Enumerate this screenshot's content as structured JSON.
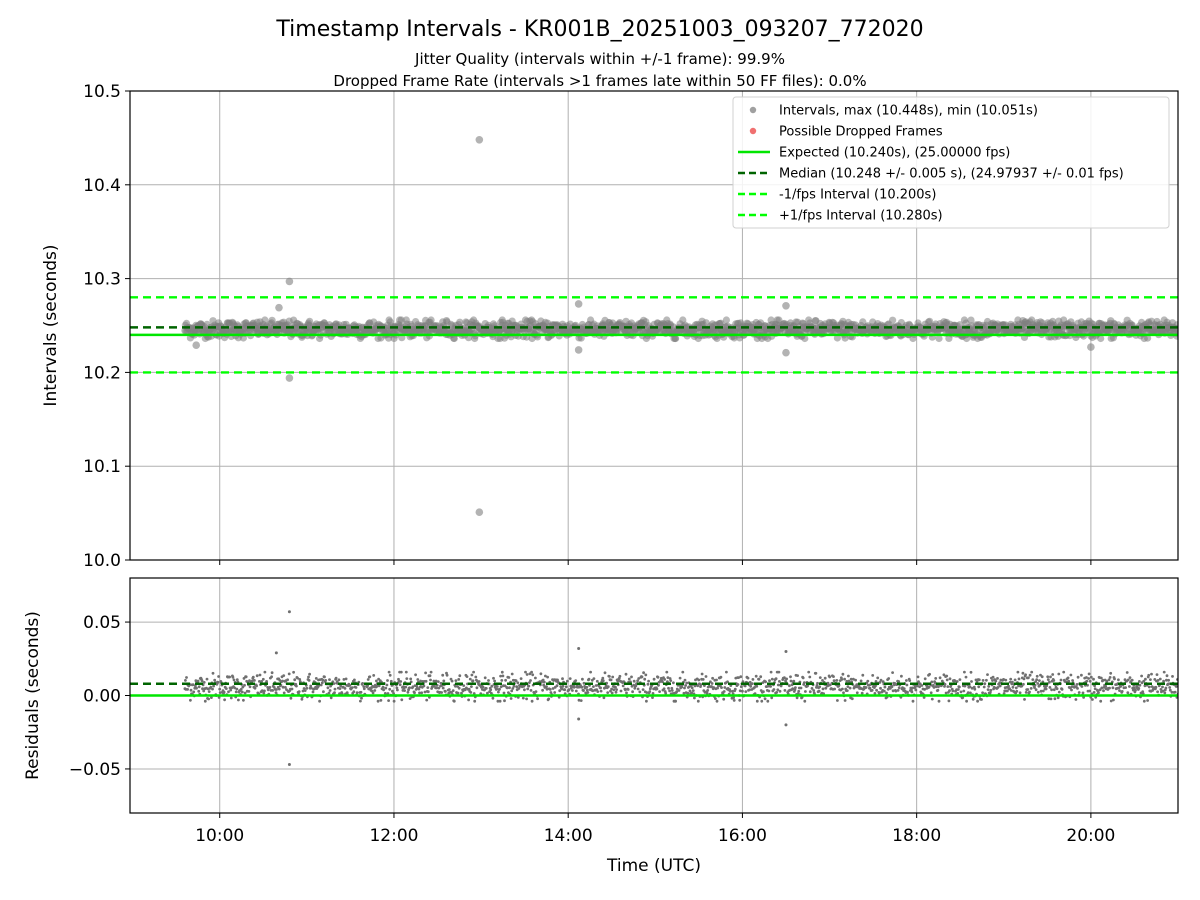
{
  "title": "Timestamp Intervals - KR001B_20251003_093207_772020",
  "subtitle_line1": "Jitter Quality (intervals within +/-1 frame): 99.9%",
  "subtitle_line2": "Dropped Frame Rate (intervals >1 frames late within 50 FF files): 0.0%",
  "colors": {
    "intervals": "#808080",
    "dropped": "#ff0000",
    "expected": "#00e600",
    "median": "#006400",
    "fps_band": "#00ff00",
    "grid": "#b0b0b0"
  },
  "chart_data": [
    {
      "type": "scatter",
      "panel": "intervals",
      "ylabel": "Intervals (seconds)",
      "ylim": [
        10.0,
        10.5
      ],
      "yticks": [
        10.0,
        10.1,
        10.2,
        10.3,
        10.4,
        10.5
      ],
      "ytick_labels": [
        "10.0",
        "10.1",
        "10.2",
        "10.3",
        "10.4",
        "10.5"
      ],
      "xlim_hours": [
        8.97,
        21.0
      ],
      "xticks_hours": [
        10,
        12,
        14,
        16,
        18,
        20
      ],
      "xtick_labels": [
        "10:00",
        "12:00",
        "14:00",
        "16:00",
        "18:00",
        "20:00"
      ],
      "grid": true,
      "legend_position": "top-right",
      "data_time_range_hours": [
        9.6,
        21.0
      ],
      "baseline_interval": 10.246,
      "band_halfwidth": 0.01,
      "outliers": [
        {
          "x": 9.73,
          "y": 10.229
        },
        {
          "x": 10.68,
          "y": 10.269
        },
        {
          "x": 10.8,
          "y": 10.297
        },
        {
          "x": 10.8,
          "y": 10.194
        },
        {
          "x": 12.98,
          "y": 10.448
        },
        {
          "x": 12.98,
          "y": 10.051
        },
        {
          "x": 14.12,
          "y": 10.273
        },
        {
          "x": 14.12,
          "y": 10.224
        },
        {
          "x": 16.5,
          "y": 10.271
        },
        {
          "x": 16.5,
          "y": 10.221
        },
        {
          "x": 20.0,
          "y": 10.227
        }
      ],
      "hlines": [
        {
          "name": "expected",
          "y": 10.24
        },
        {
          "name": "median",
          "y": 10.248
        },
        {
          "name": "minus_fps",
          "y": 10.2
        },
        {
          "name": "plus_fps",
          "y": 10.28
        }
      ],
      "legend": [
        {
          "label": "Intervals, max (10.448s), min (10.051s)",
          "style": "dot",
          "color": "#a0a0a0"
        },
        {
          "label": "Possible Dropped Frames",
          "style": "dot",
          "color": "#f07070"
        },
        {
          "label": "Expected (10.240s), (25.00000 fps)",
          "style": "solid",
          "color": "#00e600"
        },
        {
          "label": "Median (10.248 +/- 0.005 s), (24.97937 +/- 0.01 fps)",
          "style": "dashed",
          "color": "#006400"
        },
        {
          "label": "-1/fps Interval (10.200s)",
          "style": "dashed",
          "color": "#00ff00"
        },
        {
          "label": "+1/fps Interval (10.280s)",
          "style": "dashed",
          "color": "#00ff00"
        }
      ]
    },
    {
      "type": "scatter",
      "panel": "residuals",
      "xlabel": "Time (UTC)",
      "ylabel": "Residuals (seconds)",
      "ylim": [
        -0.08,
        0.08
      ],
      "yticks": [
        -0.05,
        0.0,
        0.05
      ],
      "ytick_labels": [
        "−0.05",
        "0.00",
        "0.05"
      ],
      "xlim_hours": [
        8.97,
        21.0
      ],
      "xticks_hours": [
        10,
        12,
        14,
        16,
        18,
        20
      ],
      "xtick_labels": [
        "10:00",
        "12:00",
        "14:00",
        "16:00",
        "18:00",
        "20:00"
      ],
      "grid": true,
      "baseline_residual": 0.006,
      "band_halfwidth": 0.01,
      "outliers": [
        {
          "x": 10.8,
          "y": 0.057
        },
        {
          "x": 10.8,
          "y": -0.047
        },
        {
          "x": 14.12,
          "y": 0.032
        },
        {
          "x": 14.12,
          "y": -0.016
        },
        {
          "x": 16.5,
          "y": 0.03
        },
        {
          "x": 16.5,
          "y": -0.02
        },
        {
          "x": 10.65,
          "y": 0.029
        }
      ],
      "hlines": [
        {
          "name": "expected",
          "y": 0.0
        },
        {
          "name": "median",
          "y": 0.008
        }
      ]
    }
  ]
}
